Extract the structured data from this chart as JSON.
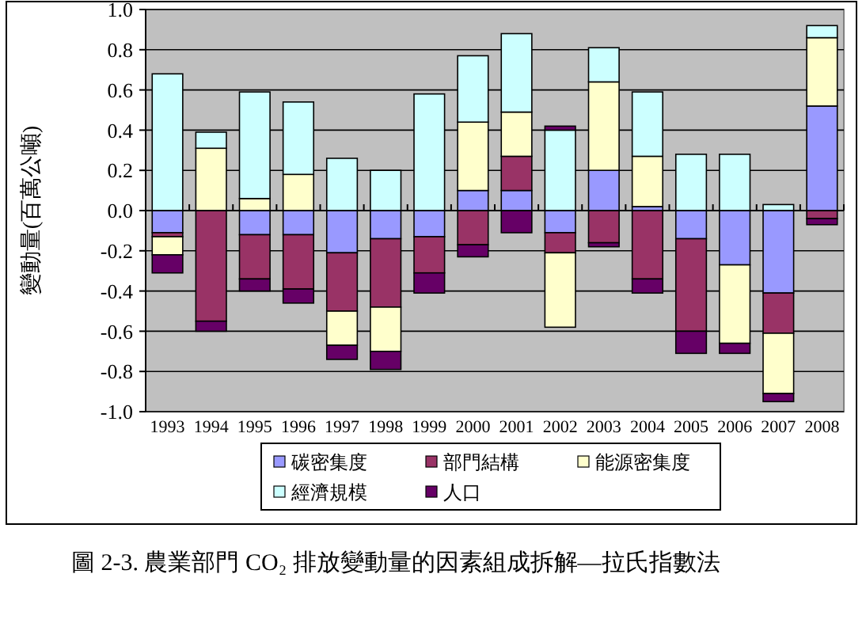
{
  "chart_data": {
    "type": "bar",
    "stacked": true,
    "ylabel": "變動量(百萬公噸)",
    "annotations": [
      "圖 2-3. 農業部門 CO₂ 排放變動量的因素組成拆解—拉氏指數法"
    ],
    "categories": [
      "1993",
      "1994",
      "1995",
      "1996",
      "1997",
      "1998",
      "1999",
      "2000",
      "2001",
      "2002",
      "2003",
      "2004",
      "2005",
      "2006",
      "2007",
      "2008"
    ],
    "ylim": [
      -1.0,
      1.0
    ],
    "yticks": [
      {
        "value": -1.0,
        "label": "-1.0"
      },
      {
        "value": -0.8,
        "label": "-0.8"
      },
      {
        "value": -0.6,
        "label": "-0.6"
      },
      {
        "value": -0.4,
        "label": "-0.4"
      },
      {
        "value": -0.2,
        "label": "-0.2"
      },
      {
        "value": 0,
        "label": "0.0"
      },
      {
        "value": 0.2,
        "label": "0.2"
      },
      {
        "value": 0.4,
        "label": "0.4"
      },
      {
        "value": 0.6,
        "label": "0.6"
      },
      {
        "value": 0.8,
        "label": "0.8"
      },
      {
        "value": 1.0,
        "label": "1.0"
      }
    ],
    "grid": "y",
    "legend": "bottom",
    "series": [
      {
        "name": "碳密集度",
        "color": "#9999ff",
        "values": [
          -0.11,
          null,
          -0.12,
          -0.12,
          -0.21,
          -0.14,
          -0.13,
          0.1,
          0.1,
          -0.11,
          0.2,
          0.02,
          -0.14,
          -0.27,
          -0.41,
          0.52
        ]
      },
      {
        "name": "部門結構",
        "color": "#993366",
        "values": [
          -0.02,
          -0.55,
          -0.22,
          -0.27,
          -0.29,
          -0.34,
          -0.18,
          -0.17,
          0.17,
          -0.1,
          -0.16,
          -0.34,
          -0.46,
          null,
          -0.2,
          -0.04
        ]
      },
      {
        "name": "能源密集度",
        "color": "#ffffcc",
        "values": [
          -0.09,
          0.31,
          0.06,
          0.18,
          -0.17,
          -0.22,
          null,
          0.34,
          0.22,
          -0.37,
          0.44,
          0.25,
          null,
          -0.39,
          -0.3,
          0.34
        ]
      },
      {
        "name": "經濟規模",
        "color": "#ccffff",
        "values": [
          0.68,
          0.08,
          0.53,
          0.36,
          0.26,
          0.2,
          0.58,
          0.33,
          0.39,
          0.4,
          0.17,
          0.32,
          0.28,
          0.28,
          0.03,
          0.06
        ]
      },
      {
        "name": "人口",
        "color": "#660066",
        "values": [
          -0.09,
          -0.05,
          -0.06,
          -0.07,
          -0.07,
          -0.09,
          -0.1,
          -0.06,
          -0.11,
          0.02,
          -0.02,
          -0.07,
          -0.11,
          -0.05,
          -0.04,
          -0.03
        ]
      }
    ]
  }
}
